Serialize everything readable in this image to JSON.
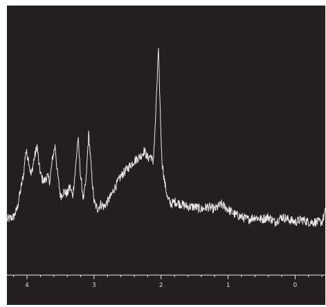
{
  "chart_data": {
    "type": "line",
    "title": "",
    "xlabel": "",
    "ylabel": "",
    "xlim": [
      4.3,
      -0.45
    ],
    "ylim": [
      0,
      1
    ],
    "x_reversed": true,
    "grid": false,
    "legend": "none",
    "x_tick_labels": [
      {
        "value": 4,
        "label": "4"
      },
      {
        "value": 3,
        "label": "3"
      },
      {
        "value": 2,
        "label": "2"
      },
      {
        "value": 1,
        "label": "1"
      },
      {
        "value": 0,
        "label": "0"
      }
    ],
    "x_minor_step": 0.2,
    "series": [
      {
        "color": "#e8e8e8",
        "baseline": 0.1,
        "noise": 0.018,
        "points": [
          [
            4.3,
            0.21
          ],
          [
            4.2,
            0.22
          ],
          [
            4.15,
            0.25
          ],
          [
            4.1,
            0.32
          ],
          [
            4.05,
            0.39
          ],
          [
            4.02,
            0.48
          ],
          [
            3.98,
            0.45
          ],
          [
            3.94,
            0.38
          ],
          [
            3.9,
            0.44
          ],
          [
            3.85,
            0.5
          ],
          [
            3.82,
            0.42
          ],
          [
            3.78,
            0.37
          ],
          [
            3.74,
            0.36
          ],
          [
            3.7,
            0.38
          ],
          [
            3.66,
            0.36
          ],
          [
            3.62,
            0.45
          ],
          [
            3.58,
            0.5
          ],
          [
            3.55,
            0.4
          ],
          [
            3.5,
            0.3
          ],
          [
            3.45,
            0.32
          ],
          [
            3.4,
            0.31
          ],
          [
            3.36,
            0.34
          ],
          [
            3.32,
            0.3
          ],
          [
            3.28,
            0.4
          ],
          [
            3.24,
            0.53
          ],
          [
            3.2,
            0.38
          ],
          [
            3.16,
            0.29
          ],
          [
            3.12,
            0.36
          ],
          [
            3.08,
            0.55
          ],
          [
            3.04,
            0.4
          ],
          [
            3.0,
            0.28
          ],
          [
            2.95,
            0.25
          ],
          [
            2.9,
            0.27
          ],
          [
            2.85,
            0.26
          ],
          [
            2.8,
            0.28
          ],
          [
            2.75,
            0.3
          ],
          [
            2.7,
            0.33
          ],
          [
            2.6,
            0.38
          ],
          [
            2.5,
            0.41
          ],
          [
            2.4,
            0.44
          ],
          [
            2.3,
            0.46
          ],
          [
            2.25,
            0.48
          ],
          [
            2.2,
            0.45
          ],
          [
            2.15,
            0.46
          ],
          [
            2.12,
            0.43
          ],
          [
            2.09,
            0.56
          ],
          [
            2.06,
            0.75
          ],
          [
            2.04,
            0.88
          ],
          [
            2.02,
            0.7
          ],
          [
            1.99,
            0.45
          ],
          [
            1.95,
            0.36
          ],
          [
            1.9,
            0.29
          ],
          [
            1.85,
            0.27
          ],
          [
            1.8,
            0.28
          ],
          [
            1.7,
            0.27
          ],
          [
            1.6,
            0.26
          ],
          [
            1.5,
            0.26
          ],
          [
            1.4,
            0.25
          ],
          [
            1.3,
            0.26
          ],
          [
            1.2,
            0.25
          ],
          [
            1.1,
            0.27
          ],
          [
            1.0,
            0.25
          ],
          [
            0.9,
            0.23
          ],
          [
            0.8,
            0.22
          ],
          [
            0.7,
            0.21
          ],
          [
            0.6,
            0.22
          ],
          [
            0.5,
            0.21
          ],
          [
            0.4,
            0.22
          ],
          [
            0.3,
            0.2
          ],
          [
            0.2,
            0.22
          ],
          [
            0.1,
            0.21
          ],
          [
            0.0,
            0.2
          ],
          [
            -0.1,
            0.21
          ],
          [
            -0.2,
            0.2
          ],
          [
            -0.3,
            0.2
          ],
          [
            -0.4,
            0.2
          ],
          [
            -0.45,
            0.24
          ]
        ]
      }
    ]
  },
  "colors": {
    "background": "#231f20",
    "axis": "#e8e8e8",
    "text": "#d8d8d8"
  }
}
